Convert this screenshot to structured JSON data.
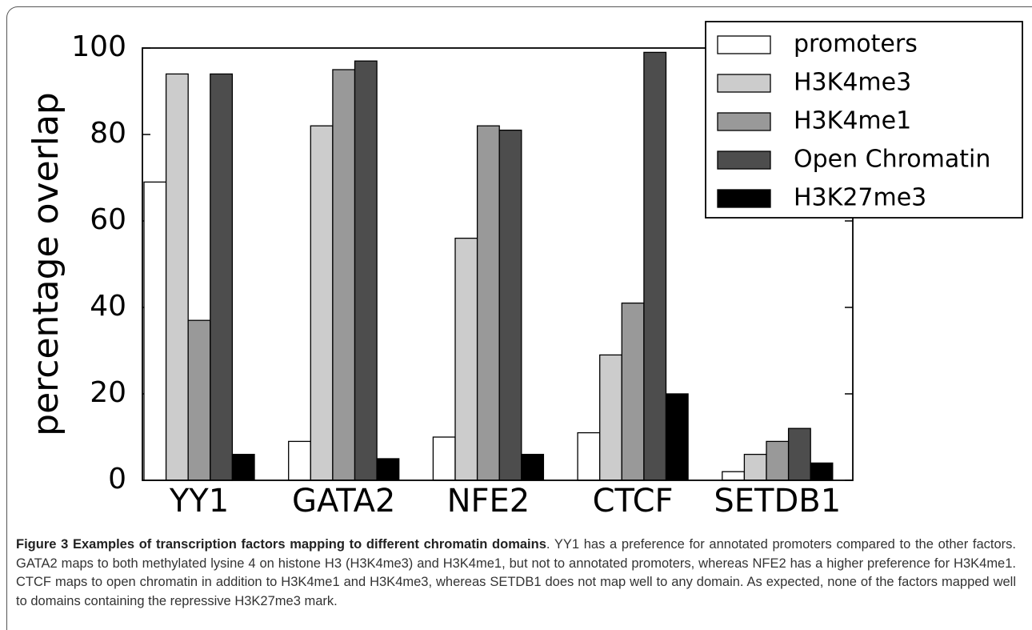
{
  "chart_data": {
    "type": "bar",
    "ylabel": "percentage overlap",
    "categories": [
      "YY1",
      "GATA2",
      "NFE2",
      "CTCF",
      "SETDB1"
    ],
    "series": [
      {
        "name": "promoters",
        "color": "#ffffff",
        "values": [
          69,
          9,
          10,
          11,
          2
        ]
      },
      {
        "name": "H3K4me3",
        "color": "#cccccc",
        "values": [
          94,
          82,
          56,
          29,
          6
        ]
      },
      {
        "name": "H3K4me1",
        "color": "#999999",
        "values": [
          37,
          95,
          82,
          41,
          9
        ]
      },
      {
        "name": "Open Chromatin",
        "color": "#4d4d4d",
        "values": [
          94,
          97,
          81,
          99,
          12
        ]
      },
      {
        "name": "H3K27me3",
        "color": "#000000",
        "values": [
          6,
          5,
          6,
          20,
          4
        ]
      }
    ],
    "ylim": [
      0,
      100
    ],
    "yticks": [
      0,
      20,
      40,
      60,
      80,
      100
    ],
    "legend": "upper right"
  },
  "caption": {
    "title": "Figure 3 Examples of transcription factors mapping to different chromatin domains",
    "body": ". YY1 has a preference for annotated promoters compared to the other factors. GATA2 maps to both methylated lysine 4 on histone H3 (H3K4me3) and H3K4me1, but not to annotated promoters, whereas NFE2 has a higher preference for H3K4me1. CTCF maps to open chromatin in addition to H3K4me1 and H3K4me3, whereas SETDB1 does not map well to any domain. As expected, none of the factors mapped well to domains containing the repressive H3K27me3 mark."
  }
}
